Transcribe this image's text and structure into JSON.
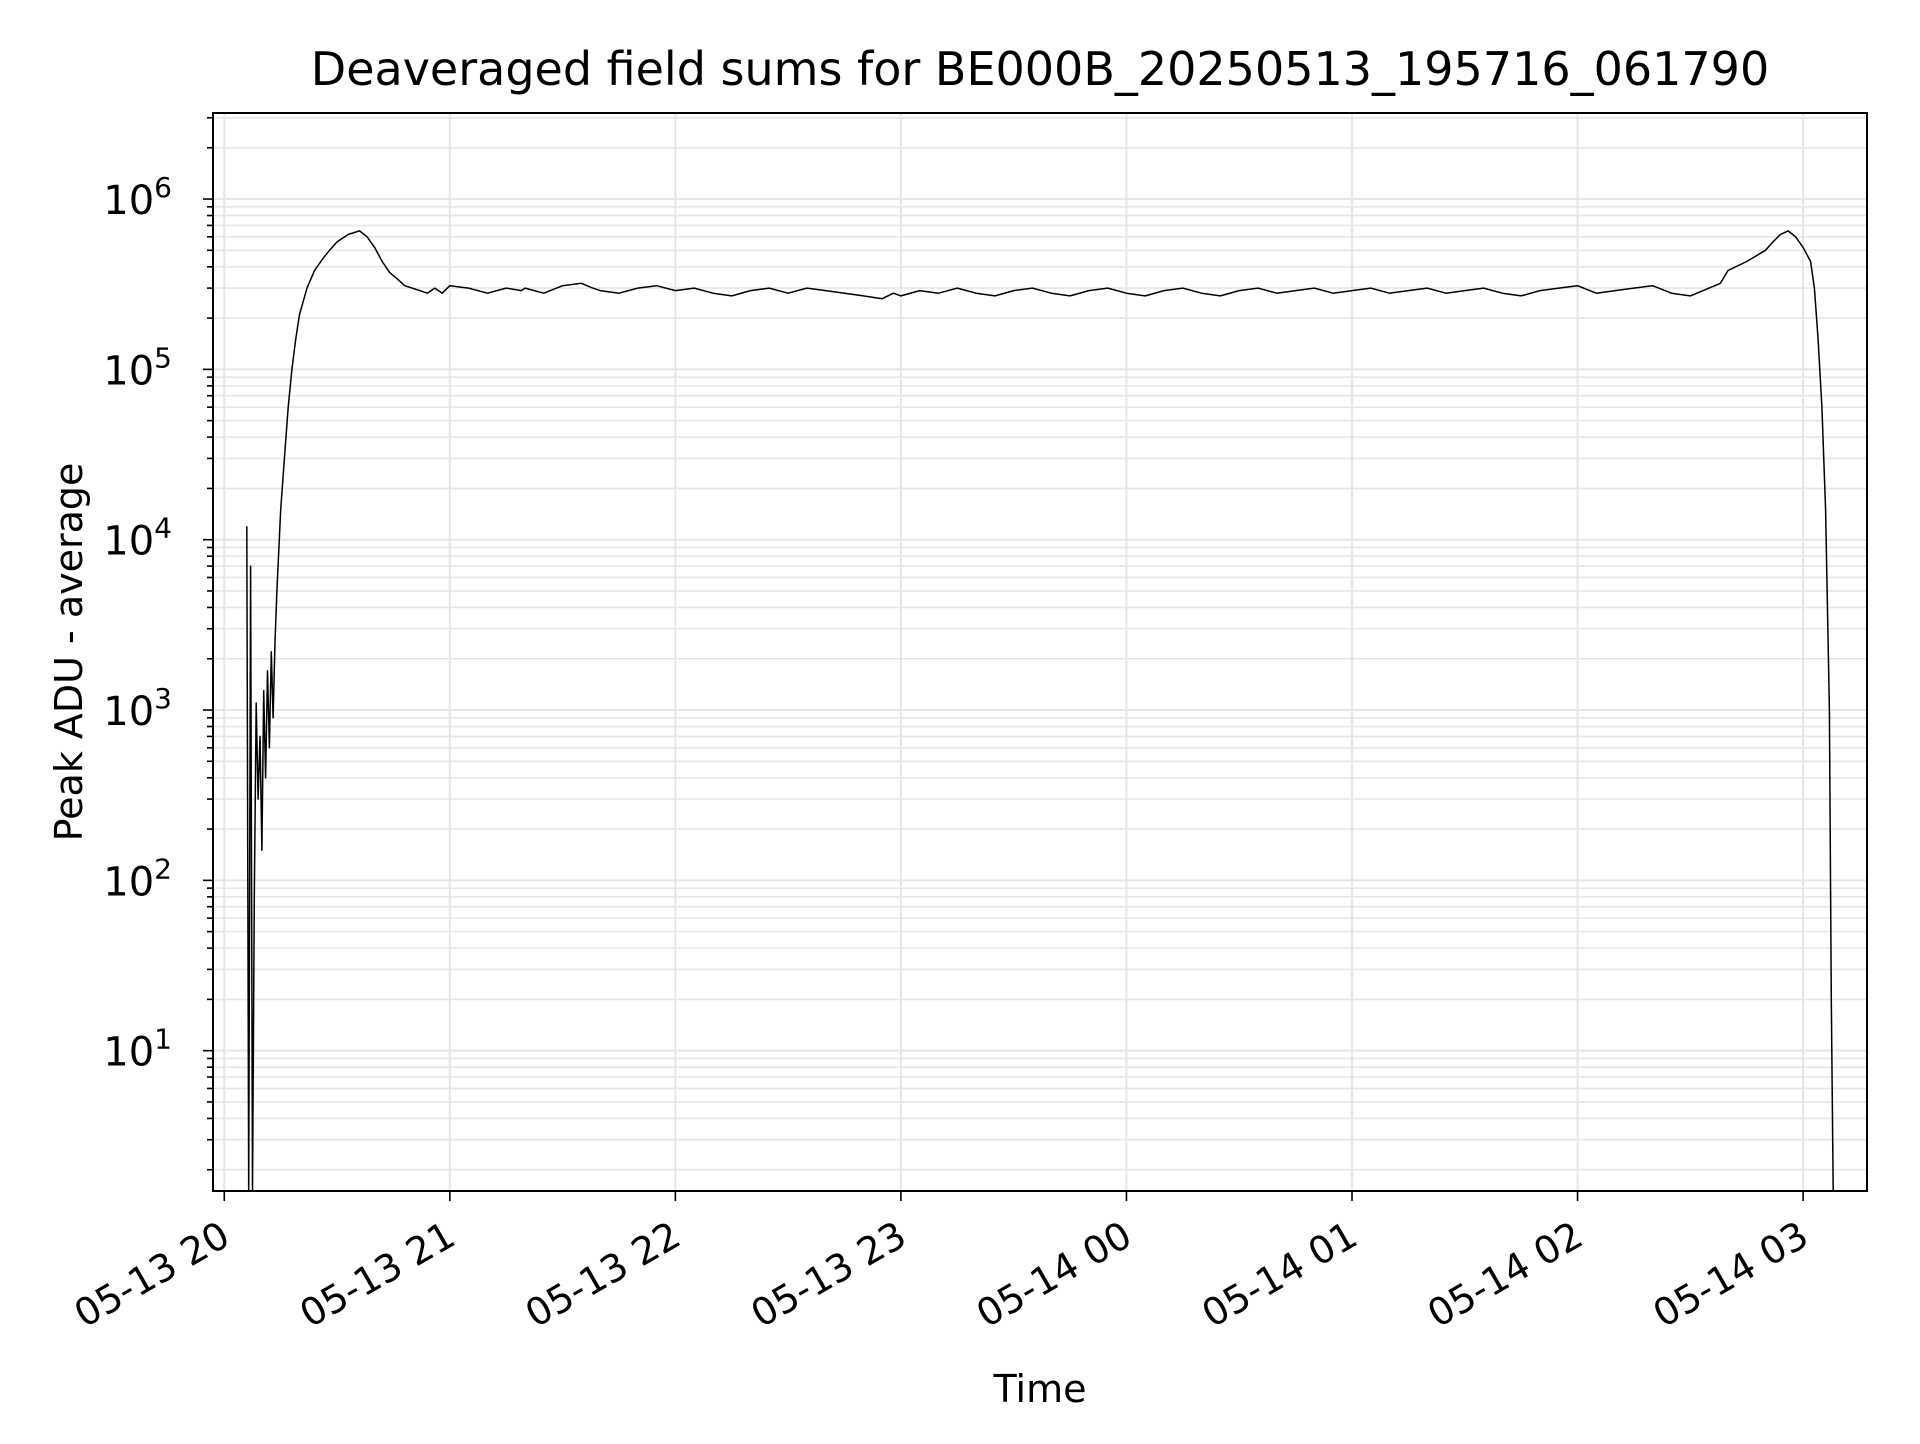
{
  "chart_data": {
    "type": "line",
    "title": "Deaveraged field sums for BE000B_20250513_195716_061790",
    "xlabel": "Time",
    "ylabel": "Peak ADU - average",
    "yscale": "log",
    "ylim": [
      1.5,
      3200000.0
    ],
    "xlim": [
      "2025-05-13 19:57",
      "2025-05-14 03:17"
    ],
    "grid": true,
    "line_color": "#000000",
    "x_ticks": [
      {
        "t": "2025-05-13 20:00",
        "label": "05-13 20"
      },
      {
        "t": "2025-05-13 21:00",
        "label": "05-13 21"
      },
      {
        "t": "2025-05-13 22:00",
        "label": "05-13 22"
      },
      {
        "t": "2025-05-13 23:00",
        "label": "05-13 23"
      },
      {
        "t": "2025-05-14 00:00",
        "label": "05-14 00"
      },
      {
        "t": "2025-05-14 01:00",
        "label": "05-14 01"
      },
      {
        "t": "2025-05-14 02:00",
        "label": "05-14 02"
      },
      {
        "t": "2025-05-14 03:00",
        "label": "05-14 03"
      }
    ],
    "y_ticks": [
      {
        "value": 10,
        "base": "10",
        "exp": "1"
      },
      {
        "value": 100,
        "base": "10",
        "exp": "2"
      },
      {
        "value": 1000,
        "base": "10",
        "exp": "3"
      },
      {
        "value": 10000,
        "base": "10",
        "exp": "4"
      },
      {
        "value": 100000,
        "base": "10",
        "exp": "5"
      },
      {
        "value": 1000000,
        "base": "10",
        "exp": "6"
      }
    ],
    "series": [
      {
        "x": [
          "2025-05-13 20:06",
          "2025-05-13 20:06:30",
          "2025-05-13 20:07",
          "2025-05-13 20:07:30",
          "2025-05-13 20:08",
          "2025-05-13 20:08:30",
          "2025-05-13 20:09",
          "2025-05-13 20:09:30",
          "2025-05-13 20:10",
          "2025-05-13 20:10:30",
          "2025-05-13 20:11",
          "2025-05-13 20:11:30",
          "2025-05-13 20:12",
          "2025-05-13 20:12:30",
          "2025-05-13 20:13",
          "2025-05-13 20:13:30",
          "2025-05-13 20:14",
          "2025-05-13 20:15",
          "2025-05-13 20:16",
          "2025-05-13 20:17",
          "2025-05-13 20:18",
          "2025-05-13 20:19",
          "2025-05-13 20:20",
          "2025-05-13 20:22",
          "2025-05-13 20:24",
          "2025-05-13 20:26",
          "2025-05-13 20:28",
          "2025-05-13 20:30",
          "2025-05-13 20:33",
          "2025-05-13 20:36",
          "2025-05-13 20:38",
          "2025-05-13 20:40",
          "2025-05-13 20:42",
          "2025-05-13 20:44",
          "2025-05-13 20:46",
          "2025-05-13 20:48",
          "2025-05-13 20:50",
          "2025-05-13 20:52",
          "2025-05-13 20:54",
          "2025-05-13 20:56",
          "2025-05-13 20:58",
          "2025-05-13 21:00",
          "2025-05-13 21:05",
          "2025-05-13 21:10",
          "2025-05-13 21:15",
          "2025-05-13 21:19",
          "2025-05-13 21:20",
          "2025-05-13 21:25",
          "2025-05-13 21:30",
          "2025-05-13 21:35",
          "2025-05-13 21:38",
          "2025-05-13 21:40",
          "2025-05-13 21:45",
          "2025-05-13 21:50",
          "2025-05-13 21:55",
          "2025-05-13 22:00",
          "2025-05-13 22:05",
          "2025-05-13 22:10",
          "2025-05-13 22:15",
          "2025-05-13 22:20",
          "2025-05-13 22:25",
          "2025-05-13 22:30",
          "2025-05-13 22:35",
          "2025-05-13 22:40",
          "2025-05-13 22:45",
          "2025-05-13 22:50",
          "2025-05-13 22:55",
          "2025-05-13 22:58",
          "2025-05-13 23:00",
          "2025-05-13 23:05",
          "2025-05-13 23:10",
          "2025-05-13 23:15",
          "2025-05-13 23:20",
          "2025-05-13 23:25",
          "2025-05-13 23:30",
          "2025-05-13 23:35",
          "2025-05-13 23:40",
          "2025-05-13 23:45",
          "2025-05-13 23:50",
          "2025-05-13 23:55",
          "2025-05-14 00:00",
          "2025-05-14 00:05",
          "2025-05-14 00:10",
          "2025-05-14 00:15",
          "2025-05-14 00:20",
          "2025-05-14 00:25",
          "2025-05-14 00:30",
          "2025-05-14 00:35",
          "2025-05-14 00:40",
          "2025-05-14 00:45",
          "2025-05-14 00:50",
          "2025-05-14 00:55",
          "2025-05-14 01:00",
          "2025-05-14 01:05",
          "2025-05-14 01:10",
          "2025-05-14 01:15",
          "2025-05-14 01:20",
          "2025-05-14 01:25",
          "2025-05-14 01:30",
          "2025-05-14 01:35",
          "2025-05-14 01:40",
          "2025-05-14 01:45",
          "2025-05-14 01:50",
          "2025-05-14 01:55",
          "2025-05-14 02:00",
          "2025-05-14 02:05",
          "2025-05-14 02:10",
          "2025-05-14 02:15",
          "2025-05-14 02:20",
          "2025-05-14 02:25",
          "2025-05-14 02:30",
          "2025-05-14 02:35",
          "2025-05-14 02:38",
          "2025-05-14 02:40",
          "2025-05-14 02:45",
          "2025-05-14 02:50",
          "2025-05-14 02:52",
          "2025-05-14 02:54",
          "2025-05-14 02:56",
          "2025-05-14 02:58",
          "2025-05-14 03:00",
          "2025-05-14 03:02",
          "2025-05-14 03:03",
          "2025-05-14 03:04",
          "2025-05-14 03:05",
          "2025-05-14 03:06",
          "2025-05-14 03:07",
          "2025-05-14 03:07:30",
          "2025-05-14 03:08"
        ],
        "y": [
          12000,
          1.5,
          7000,
          1.5,
          80,
          1100,
          300,
          700,
          150,
          1300,
          400,
          1700,
          600,
          2200,
          900,
          2500,
          5000,
          15000,
          30000,
          60000,
          100000,
          150000,
          210000,
          300000,
          380000,
          440000,
          500000,
          560000,
          620000,
          650000,
          600000,
          520000,
          430000,
          370000,
          340000,
          310000,
          300000,
          290000,
          280000,
          300000,
          280000,
          310000,
          300000,
          280000,
          300000,
          290000,
          300000,
          280000,
          310000,
          320000,
          300000,
          290000,
          280000,
          300000,
          310000,
          290000,
          300000,
          280000,
          270000,
          290000,
          300000,
          280000,
          300000,
          290000,
          280000,
          270000,
          260000,
          280000,
          270000,
          290000,
          280000,
          300000,
          280000,
          270000,
          290000,
          300000,
          280000,
          270000,
          290000,
          300000,
          280000,
          270000,
          290000,
          300000,
          280000,
          270000,
          290000,
          300000,
          280000,
          290000,
          300000,
          280000,
          290000,
          300000,
          280000,
          290000,
          300000,
          280000,
          290000,
          300000,
          280000,
          270000,
          290000,
          300000,
          310000,
          280000,
          290000,
          300000,
          310000,
          280000,
          270000,
          300000,
          320000,
          380000,
          430000,
          500000,
          560000,
          620000,
          650000,
          600000,
          520000,
          430000,
          300000,
          150000,
          60000,
          15000,
          1000,
          20,
          1.5
        ]
      }
    ]
  }
}
